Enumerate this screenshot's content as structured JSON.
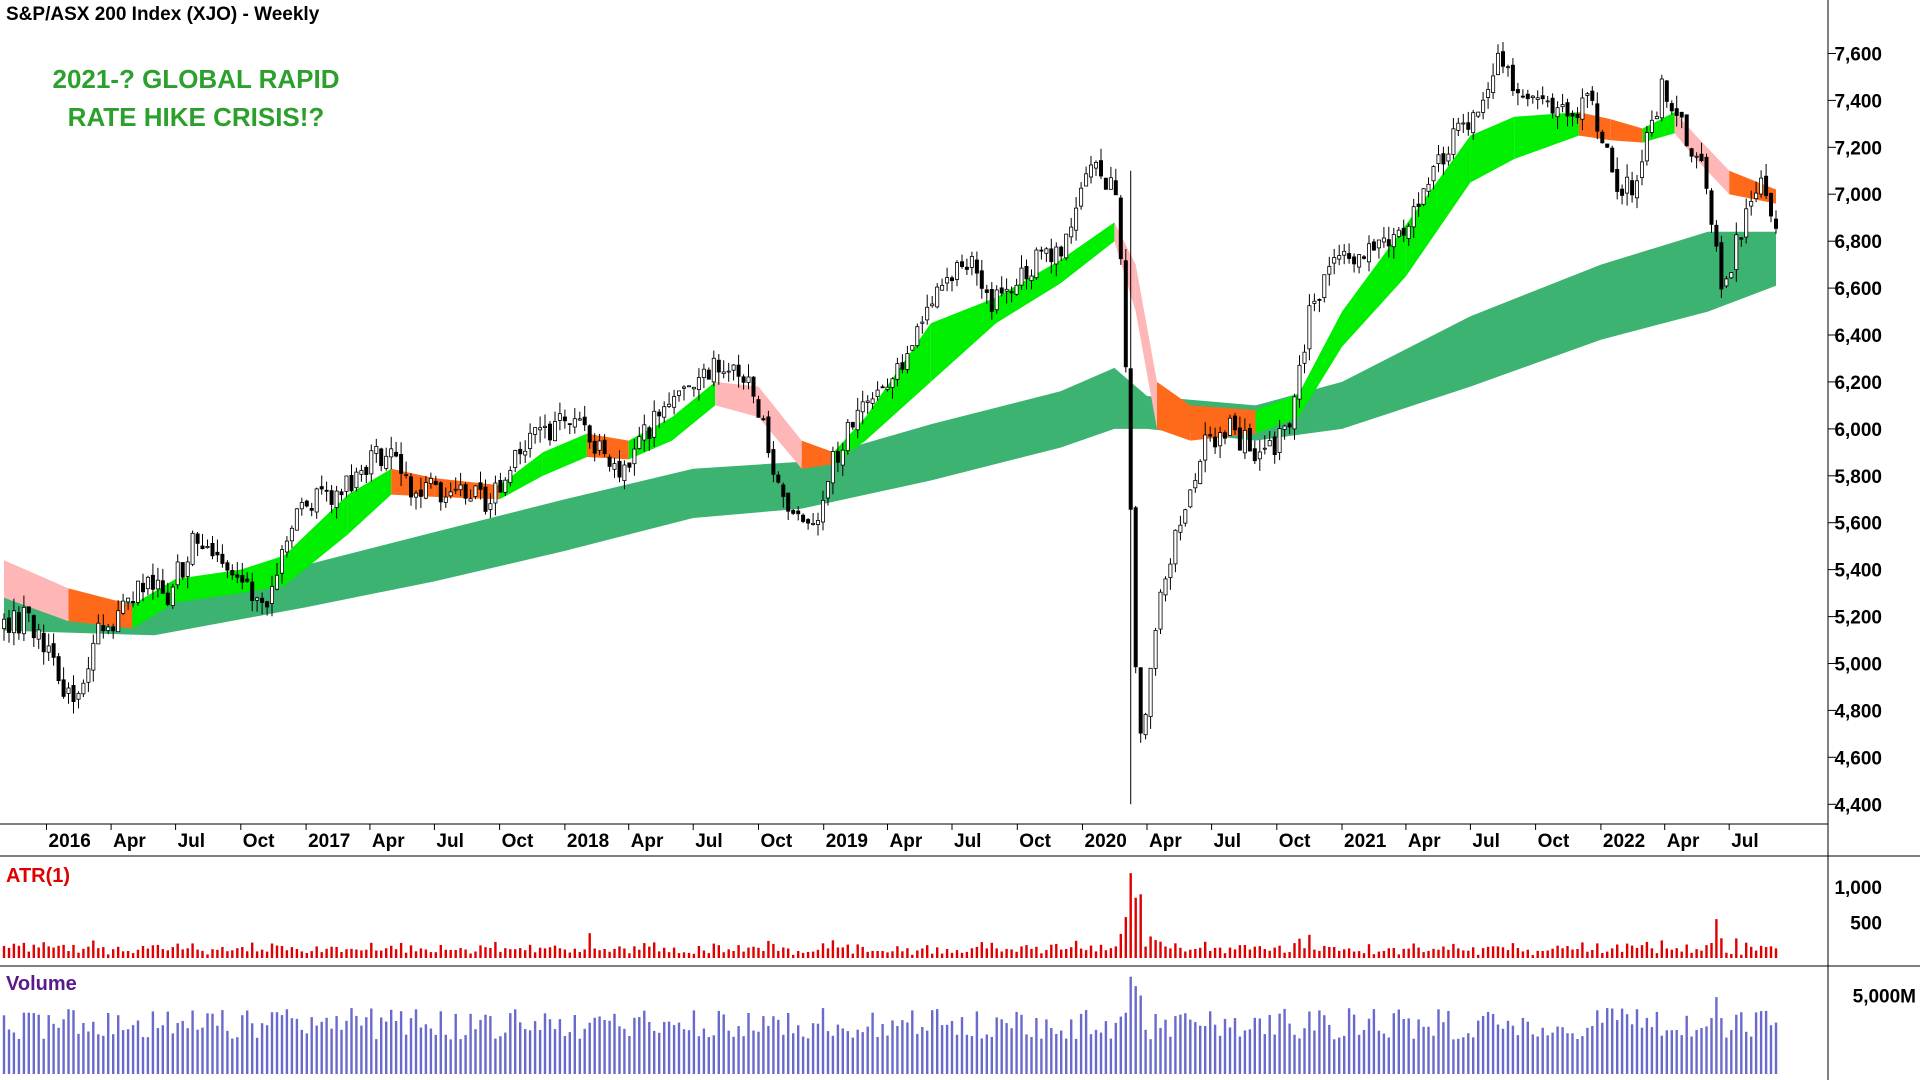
{
  "header": {
    "title": "S&P/ASX 200 Index (XJO) - Weekly",
    "annotation_line1": "2021-? GLOBAL RAPID",
    "annotation_line2": "RATE HIKE CRISIS!?"
  },
  "colors": {
    "candle": "#000000",
    "long_band": "#3cb371",
    "short_band_up": "#00ee00",
    "short_band_down": "#ff6a1a",
    "short_band_fade": "#ffb6b6",
    "atr": "#e00000",
    "volume": "#6a6acd",
    "annotation": "#2ca02c"
  },
  "panels": {
    "atr_label": "ATR(1)",
    "volume_label": "Volume"
  },
  "chart_data": {
    "type": "candlestick",
    "title": "S&P/ASX 200 Index (XJO) - Weekly",
    "annotations": [
      "2021-? GLOBAL RAPID",
      "RATE HIKE CRISIS!?"
    ],
    "price_axis": {
      "ylim": [
        4350,
        7700
      ],
      "ticks": [
        4400,
        4600,
        4800,
        5000,
        5200,
        5400,
        5600,
        5800,
        6000,
        6200,
        6400,
        6600,
        6800,
        7000,
        7200,
        7400,
        7600
      ],
      "tick_labels": [
        "4,400",
        "4,600",
        "4,800",
        "5,000",
        "5,200",
        "5,400",
        "5,600",
        "5,800",
        "6,000",
        "6,200",
        "6,400",
        "6,600",
        "6,800",
        "7,000",
        "7,200",
        "7,400",
        "7,600"
      ]
    },
    "time_axis": {
      "start": "2015-11-02",
      "end": "2022-09-05",
      "labels": [
        {
          "text": "2016",
          "date": "2016-01-01"
        },
        {
          "text": "Apr",
          "date": "2016-04-01"
        },
        {
          "text": "Jul",
          "date": "2016-07-01"
        },
        {
          "text": "Oct",
          "date": "2016-10-01"
        },
        {
          "text": "2017",
          "date": "2017-01-01"
        },
        {
          "text": "Apr",
          "date": "2017-04-01"
        },
        {
          "text": "Jul",
          "date": "2017-07-01"
        },
        {
          "text": "Oct",
          "date": "2017-10-01"
        },
        {
          "text": "2018",
          "date": "2018-01-01"
        },
        {
          "text": "Apr",
          "date": "2018-04-01"
        },
        {
          "text": "Jul",
          "date": "2018-07-01"
        },
        {
          "text": "Oct",
          "date": "2018-10-01"
        },
        {
          "text": "2019",
          "date": "2019-01-01"
        },
        {
          "text": "Apr",
          "date": "2019-04-01"
        },
        {
          "text": "Jul",
          "date": "2019-07-01"
        },
        {
          "text": "Oct",
          "date": "2019-10-01"
        },
        {
          "text": "2020",
          "date": "2020-01-01"
        },
        {
          "text": "Apr",
          "date": "2020-04-01"
        },
        {
          "text": "Jul",
          "date": "2020-07-01"
        },
        {
          "text": "Oct",
          "date": "2020-10-01"
        },
        {
          "text": "2021",
          "date": "2021-01-01"
        },
        {
          "text": "Apr",
          "date": "2021-04-01"
        },
        {
          "text": "Jul",
          "date": "2021-07-01"
        },
        {
          "text": "Oct",
          "date": "2021-10-01"
        },
        {
          "text": "2022",
          "date": "2022-01-01"
        },
        {
          "text": "Apr",
          "date": "2022-04-01"
        },
        {
          "text": "Jul",
          "date": "2022-07-01"
        }
      ]
    },
    "close_path": [
      [
        "2015-11-02",
        5150
      ],
      [
        "2015-12-07",
        5200
      ],
      [
        "2016-01-11",
        5000
      ],
      [
        "2016-02-08",
        4800
      ],
      [
        "2016-03-07",
        5100
      ],
      [
        "2016-04-11",
        5200
      ],
      [
        "2016-05-16",
        5350
      ],
      [
        "2016-06-20",
        5300
      ],
      [
        "2016-07-25",
        5500
      ],
      [
        "2016-08-22",
        5450
      ],
      [
        "2016-09-19",
        5400
      ],
      [
        "2016-10-24",
        5300
      ],
      [
        "2016-11-07",
        5200
      ],
      [
        "2016-12-12",
        5600
      ],
      [
        "2017-01-16",
        5700
      ],
      [
        "2017-02-20",
        5750
      ],
      [
        "2017-03-27",
        5850
      ],
      [
        "2017-04-24",
        5900
      ],
      [
        "2017-05-29",
        5750
      ],
      [
        "2017-06-26",
        5750
      ],
      [
        "2017-08-07",
        5720
      ],
      [
        "2017-09-11",
        5700
      ],
      [
        "2017-10-09",
        5800
      ],
      [
        "2017-11-06",
        5950
      ],
      [
        "2018-01-08",
        6050
      ],
      [
        "2018-02-12",
        5950
      ],
      [
        "2018-03-26",
        5800
      ],
      [
        "2018-05-07",
        6050
      ],
      [
        "2018-06-11",
        6200
      ],
      [
        "2018-07-16",
        6250
      ],
      [
        "2018-08-20",
        6300
      ],
      [
        "2018-09-24",
        6180
      ],
      [
        "2018-10-22",
        5800
      ],
      [
        "2018-11-19",
        5650
      ],
      [
        "2018-12-17",
        5550
      ],
      [
        "2019-01-14",
        5850
      ],
      [
        "2019-02-18",
        6100
      ],
      [
        "2019-03-25",
        6200
      ],
      [
        "2019-05-06",
        6350
      ],
      [
        "2019-06-17",
        6600
      ],
      [
        "2019-07-29",
        6750
      ],
      [
        "2019-08-26",
        6550
      ],
      [
        "2019-10-07",
        6650
      ],
      [
        "2019-11-11",
        6750
      ],
      [
        "2019-12-09",
        6800
      ],
      [
        "2020-01-13",
        7100
      ],
      [
        "2020-02-17",
        7050
      ],
      [
        "2020-03-02",
        6300
      ],
      [
        "2020-03-16",
        5000
      ],
      [
        "2020-03-23",
        4650
      ],
      [
        "2020-04-20",
        5300
      ],
      [
        "2020-05-25",
        5700
      ],
      [
        "2020-06-22",
        5950
      ],
      [
        "2020-07-27",
        6000
      ],
      [
        "2020-08-31",
        5900
      ],
      [
        "2020-09-28",
        5900
      ],
      [
        "2020-10-26",
        6100
      ],
      [
        "2020-11-16",
        6500
      ],
      [
        "2020-12-21",
        6700
      ],
      [
        "2021-02-01",
        6750
      ],
      [
        "2021-03-15",
        6800
      ],
      [
        "2021-04-26",
        7000
      ],
      [
        "2021-06-07",
        7250
      ],
      [
        "2021-07-12",
        7350
      ],
      [
        "2021-08-09",
        7550
      ],
      [
        "2021-09-13",
        7400
      ],
      [
        "2021-10-18",
        7350
      ],
      [
        "2021-11-22",
        7350
      ],
      [
        "2021-12-20",
        7400
      ],
      [
        "2022-01-24",
        7000
      ],
      [
        "2022-02-21",
        7050
      ],
      [
        "2022-03-28",
        7450
      ],
      [
        "2022-04-25",
        7300
      ],
      [
        "2022-05-23",
        7100
      ],
      [
        "2022-06-20",
        6600
      ],
      [
        "2022-07-25",
        6900
      ],
      [
        "2022-08-15",
        7050
      ],
      [
        "2022-09-05",
        6850
      ]
    ],
    "long_term_band": [
      [
        "2015-11-02",
        5140,
        5320
      ],
      [
        "2016-06-01",
        5120,
        5250
      ],
      [
        "2017-01-01",
        5240,
        5420
      ],
      [
        "2017-07-01",
        5350,
        5560
      ],
      [
        "2018-01-01",
        5480,
        5700
      ],
      [
        "2018-07-01",
        5620,
        5830
      ],
      [
        "2018-12-01",
        5660,
        5860
      ],
      [
        "2019-06-01",
        5780,
        6020
      ],
      [
        "2019-12-01",
        5920,
        6160
      ],
      [
        "2020-02-15",
        6000,
        6260
      ],
      [
        "2020-04-01",
        6000,
        6140
      ],
      [
        "2020-09-01",
        5950,
        6100
      ],
      [
        "2021-01-01",
        6000,
        6200
      ],
      [
        "2021-07-01",
        6180,
        6480
      ],
      [
        "2022-01-01",
        6380,
        6700
      ],
      [
        "2022-06-01",
        6500,
        6840
      ],
      [
        "2022-09-05",
        6610,
        6840
      ]
    ],
    "short_term_band": [
      [
        "2015-11-02",
        5280,
        5440,
        "fade"
      ],
      [
        "2016-02-01",
        5180,
        5320,
        "fade"
      ],
      [
        "2016-05-01",
        5150,
        5250,
        "down"
      ],
      [
        "2016-07-01",
        5260,
        5360,
        "up"
      ],
      [
        "2016-10-01",
        5300,
        5400,
        "up"
      ],
      [
        "2016-12-01",
        5330,
        5460,
        "up"
      ],
      [
        "2017-03-01",
        5550,
        5720,
        "up"
      ],
      [
        "2017-05-01",
        5720,
        5830,
        "up"
      ],
      [
        "2017-07-01",
        5710,
        5790,
        "down"
      ],
      [
        "2017-10-01",
        5700,
        5760,
        "down"
      ],
      [
        "2017-12-01",
        5800,
        5900,
        "up"
      ],
      [
        "2018-02-01",
        5880,
        5980,
        "up"
      ],
      [
        "2018-04-01",
        5870,
        5950,
        "down"
      ],
      [
        "2018-06-01",
        5950,
        6050,
        "up"
      ],
      [
        "2018-08-01",
        6100,
        6200,
        "up"
      ],
      [
        "2018-10-01",
        6050,
        6180,
        "fade"
      ],
      [
        "2018-12-01",
        5830,
        5950,
        "fade"
      ],
      [
        "2019-01-15",
        5850,
        5900,
        "down"
      ],
      [
        "2019-03-01",
        5950,
        6050,
        "up"
      ],
      [
        "2019-06-01",
        6200,
        6450,
        "up"
      ],
      [
        "2019-09-01",
        6450,
        6560,
        "up"
      ],
      [
        "2019-12-01",
        6620,
        6720,
        "up"
      ],
      [
        "2020-02-15",
        6800,
        6880,
        "up"
      ],
      [
        "2020-03-16",
        6500,
        6700,
        "fade"
      ],
      [
        "2020-04-15",
        6000,
        6200,
        "fade"
      ],
      [
        "2020-06-01",
        5950,
        6100,
        "down"
      ],
      [
        "2020-09-01",
        5980,
        6080,
        "down"
      ],
      [
        "2020-11-01",
        6050,
        6150,
        "up"
      ],
      [
        "2021-01-01",
        6350,
        6500,
        "up"
      ],
      [
        "2021-04-01",
        6650,
        6870,
        "up"
      ],
      [
        "2021-07-01",
        7050,
        7250,
        "up"
      ],
      [
        "2021-09-01",
        7150,
        7330,
        "up"
      ],
      [
        "2021-12-01",
        7250,
        7350,
        "up"
      ],
      [
        "2022-01-15",
        7230,
        7320,
        "down"
      ],
      [
        "2022-03-01",
        7220,
        7280,
        "down"
      ],
      [
        "2022-04-15",
        7260,
        7350,
        "up"
      ],
      [
        "2022-05-15",
        7150,
        7250,
        "fade"
      ],
      [
        "2022-07-01",
        7000,
        7100,
        "fade"
      ],
      [
        "2022-09-05",
        6960,
        7020,
        "down"
      ]
    ],
    "atr_axis": {
      "ylim": [
        0,
        1300
      ],
      "ticks": [
        500,
        1000
      ],
      "tick_labels": [
        "500",
        "1,000"
      ]
    },
    "volume_axis": {
      "ylim": [
        0,
        6500
      ],
      "ticks": [
        5000
      ],
      "tick_labels": [
        "5,000M"
      ]
    },
    "events": [
      {
        "date": "2020-03-09",
        "atr": 1200,
        "volume": 6200,
        "high": 7100,
        "low": 4400
      },
      {
        "date": "2020-03-16",
        "atr": 850,
        "volume": 5600
      },
      {
        "date": "2020-03-23",
        "atr": 900,
        "volume": 5000
      },
      {
        "date": "2018-02-05",
        "atr": 350
      },
      {
        "date": "2022-06-13",
        "atr": 550,
        "volume": 4900
      }
    ]
  }
}
